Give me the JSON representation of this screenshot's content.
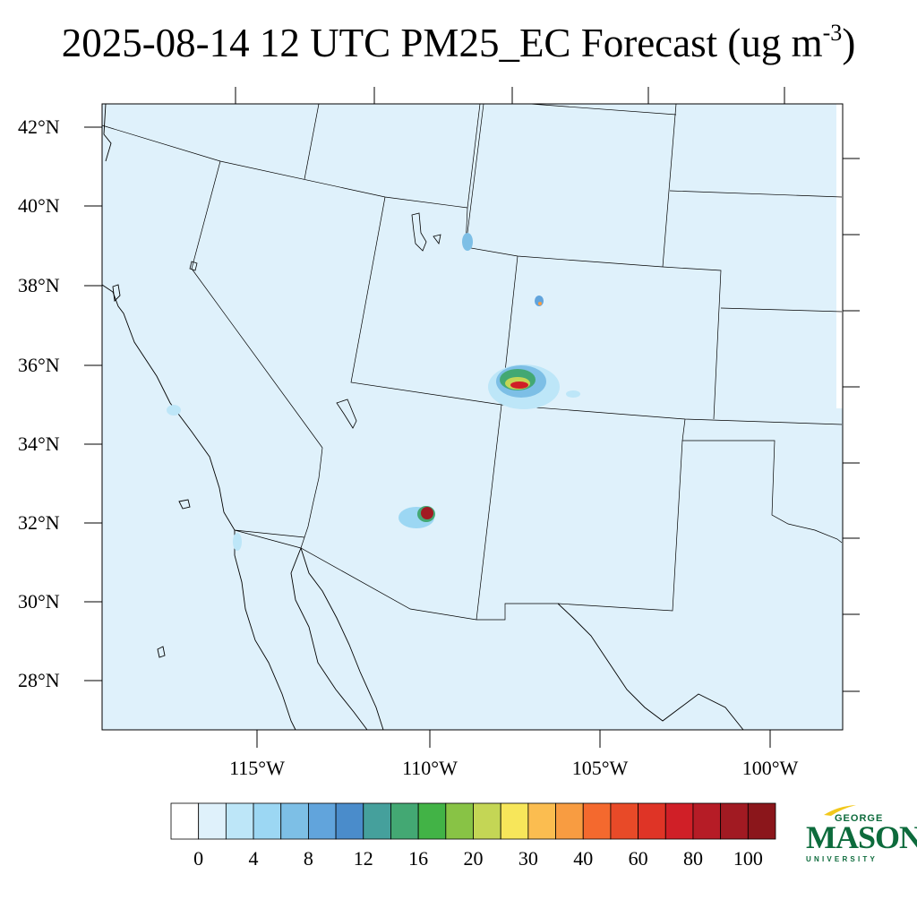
{
  "title": {
    "main": "2025-08-14 12 UTC PM25_EC Forecast (ug m",
    "exponent": "-3",
    "close": ")"
  },
  "map": {
    "latitude_labels": [
      "42°N",
      "40°N",
      "38°N",
      "36°N",
      "34°N",
      "32°N",
      "30°N",
      "28°N"
    ],
    "longitude_labels": [
      "115°W",
      "110°W",
      "105°W",
      "100°W"
    ],
    "background_color": "#dff1fb",
    "hotspots": [
      {
        "name": "central-hotspot",
        "peak_value": 100
      },
      {
        "name": "southern-hotspot",
        "peak_value": 100
      },
      {
        "name": "northern-small-hotspot",
        "peak_value": 30
      }
    ]
  },
  "colorbar": {
    "colors": [
      "#ffffff",
      "#dff1fb",
      "#bde6f8",
      "#9cd7f3",
      "#7dbfe6",
      "#61a4dc",
      "#4a8ccb",
      "#45a09c",
      "#43a873",
      "#42b346",
      "#88c345",
      "#c4d655",
      "#f7e65a",
      "#fbbd50",
      "#f89c41",
      "#f4692e",
      "#e84a28",
      "#df3426",
      "#d01f27",
      "#b61c26",
      "#a11a22",
      "#8b161b"
    ],
    "labels": [
      "0",
      "4",
      "8",
      "12",
      "16",
      "20",
      "30",
      "40",
      "60",
      "80",
      "100"
    ]
  },
  "logo": {
    "line1": "GEORGE",
    "line2": "MASON",
    "line3": "UNIVERSITY",
    "color": "#0d6b3c",
    "accent_color": "#f2c81b"
  }
}
